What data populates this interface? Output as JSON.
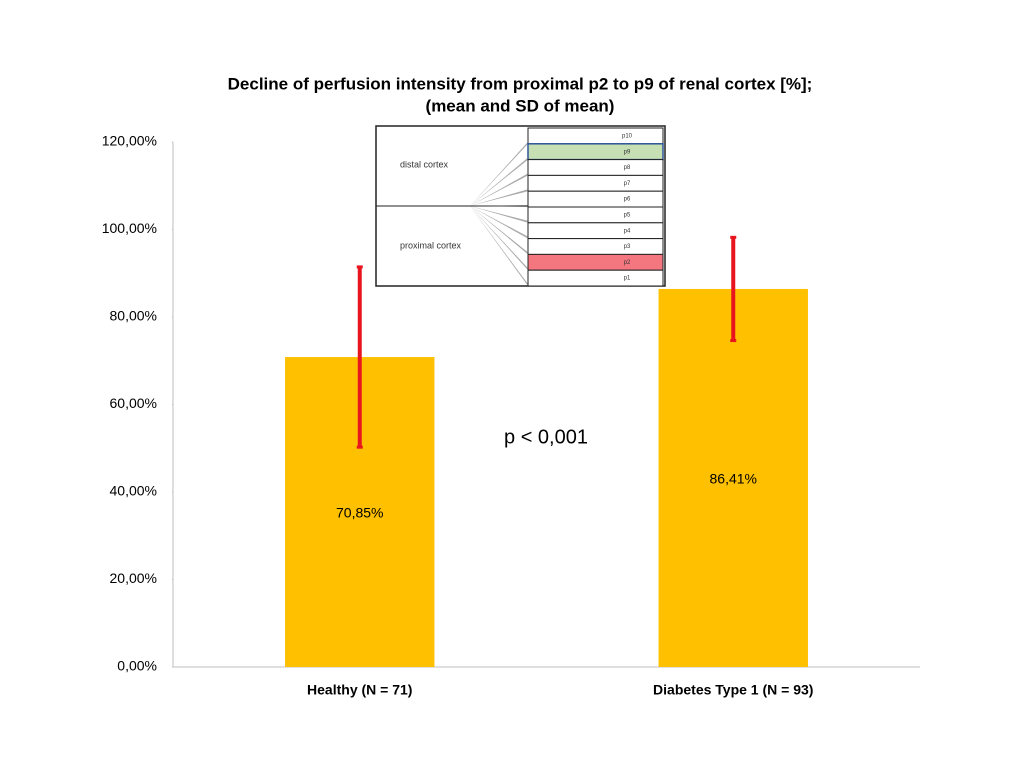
{
  "chart_data": {
    "type": "bar",
    "title": [
      "Decline of perfusion intensity from proximal  p2 to p9 of renal cortex [%];",
      "(mean and SD of mean)"
    ],
    "categories": [
      "Healthy (N = 71)",
      "Diabetes  Type 1 (N = 93)"
    ],
    "values": [
      70.85,
      86.41
    ],
    "value_labels": [
      "70,85%",
      "86,41%"
    ],
    "errors": [
      20.6,
      11.8
    ],
    "color": "#ffc000",
    "error_color": "#e8141e",
    "ylim": [
      0,
      120
    ],
    "yticks": [
      {
        "value": 0,
        "label": "0,00%"
      },
      {
        "value": 20,
        "label": "20,00%"
      },
      {
        "value": 40,
        "label": "40,00%"
      },
      {
        "value": 60,
        "label": "60,00%"
      },
      {
        "value": 80,
        "label": "80,00%"
      },
      {
        "value": 100,
        "label": "100,00%"
      },
      {
        "value": 120,
        "label": "120,00%"
      }
    ],
    "grid": false,
    "annotation": "p < 0,001",
    "inset": {
      "distal": "distal cortex",
      "proximal": "proximal cortex",
      "rows": [
        {
          "label": "p10"
        },
        {
          "label": "p9",
          "color": "#c6e0b4"
        },
        {
          "label": "p8"
        },
        {
          "label": "p7"
        },
        {
          "label": "p6"
        },
        {
          "label": "p5"
        },
        {
          "label": "p4"
        },
        {
          "label": "p3"
        },
        {
          "label": "p2",
          "color": "#f4777f"
        },
        {
          "label": "p1"
        }
      ]
    }
  }
}
